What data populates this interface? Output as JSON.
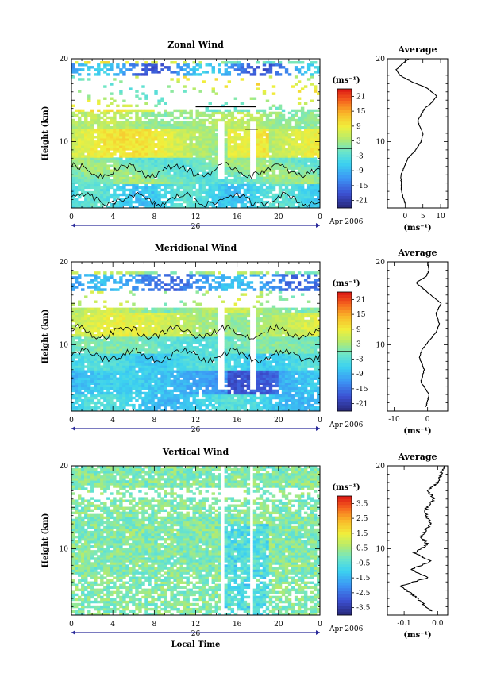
{
  "chart_data": [
    {
      "type": "heatmap",
      "title": "Zonal Wind",
      "ylabel": "Height (km)",
      "y_ticks": [
        "10",
        "20"
      ],
      "ylim": [
        2,
        20
      ],
      "x_ticks": [
        "0",
        "4",
        "8",
        "12",
        "16",
        "20",
        "0"
      ],
      "xlim": [
        0,
        24
      ],
      "date_label": "26",
      "date_suffix": "Apr 2006",
      "colorbar_unit": "(ms⁻¹)",
      "colorbar_ticks": [
        "21",
        "15",
        "9",
        "3",
        "-3",
        "-9",
        "-15",
        "-21"
      ],
      "colorbar_range": [
        -24,
        24
      ],
      "contour_level": 0,
      "profile": {
        "title": "Average",
        "y_ticks": [
          "10",
          "20"
        ],
        "x_ticks": [
          "0",
          "5",
          "10"
        ],
        "xlim": [
          -5,
          12
        ],
        "xlabel": "(ms⁻¹)",
        "points": [
          [
            0,
            2.5
          ],
          [
            -1,
            4
          ],
          [
            -1.2,
            6
          ],
          [
            0.8,
            8
          ],
          [
            3,
            9
          ],
          [
            4.5,
            10
          ],
          [
            5,
            11
          ],
          [
            3.5,
            12.5
          ],
          [
            5.5,
            14
          ],
          [
            7,
            14.5
          ],
          [
            9,
            15.5
          ],
          [
            6,
            16.5
          ],
          [
            2,
            17.2
          ],
          [
            -1.5,
            18
          ],
          [
            -2.5,
            18.7
          ],
          [
            -0.5,
            19.5
          ],
          [
            1,
            20
          ]
        ]
      }
    },
    {
      "type": "heatmap",
      "title": "Meridional Wind",
      "ylabel": "Height (km)",
      "y_ticks": [
        "10",
        "20"
      ],
      "ylim": [
        2,
        20
      ],
      "x_ticks": [
        "0",
        "4",
        "8",
        "12",
        "16",
        "20",
        "0"
      ],
      "xlim": [
        0,
        24
      ],
      "date_label": "26",
      "date_suffix": "Apr 2006",
      "colorbar_unit": "(ms⁻¹)",
      "colorbar_ticks": [
        "21",
        "15",
        "9",
        "3",
        "-3",
        "-9",
        "-15",
        "-21"
      ],
      "colorbar_range": [
        -24,
        24
      ],
      "contour_level": 0,
      "profile": {
        "title": "Average",
        "y_ticks": [
          "10",
          "20"
        ],
        "x_ticks": [
          "-10",
          "0"
        ],
        "xlim": [
          -12,
          6
        ],
        "xlabel": "(ms⁻¹)",
        "points": [
          [
            -0.5,
            2.5
          ],
          [
            0.5,
            4
          ],
          [
            -2,
            5.5
          ],
          [
            -1,
            7
          ],
          [
            -2.5,
            8.5
          ],
          [
            -1.5,
            9.5
          ],
          [
            0.5,
            10.5
          ],
          [
            2.5,
            11.5
          ],
          [
            3.5,
            12.5
          ],
          [
            2.5,
            13.8
          ],
          [
            4,
            15
          ],
          [
            1,
            16
          ],
          [
            -2,
            17
          ],
          [
            -3.5,
            17.5
          ],
          [
            -0.5,
            18.2
          ],
          [
            0.5,
            19
          ],
          [
            0,
            20
          ]
        ]
      }
    },
    {
      "type": "heatmap",
      "title": "Vertical Wind",
      "ylabel": "Height (km)",
      "xlabel": "Local Time",
      "y_ticks": [
        "10",
        "20"
      ],
      "ylim": [
        2,
        20
      ],
      "x_ticks": [
        "0",
        "4",
        "8",
        "12",
        "16",
        "20",
        "0"
      ],
      "xlim": [
        0,
        24
      ],
      "date_label": "26",
      "date_suffix": "Apr 2006",
      "colorbar_unit": "(ms⁻¹)",
      "colorbar_ticks": [
        "3.5",
        "2.5",
        "1.5",
        "0.5",
        "-0.5",
        "-1.5",
        "-2.5",
        "-3.5"
      ],
      "colorbar_range": [
        -4,
        4
      ],
      "profile": {
        "title": "Average",
        "y_ticks": [
          "10",
          "20"
        ],
        "x_ticks": [
          "-0.1",
          "0.0"
        ],
        "xlim": [
          -0.15,
          0.03
        ],
        "xlabel": "(ms⁻¹)",
        "points": [
          [
            -0.02,
            2.5
          ],
          [
            -0.06,
            4
          ],
          [
            -0.11,
            5.5
          ],
          [
            -0.03,
            6.5
          ],
          [
            -0.08,
            7.5
          ],
          [
            -0.02,
            8.5
          ],
          [
            -0.07,
            9.5
          ],
          [
            -0.03,
            10.5
          ],
          [
            -0.05,
            11.5
          ],
          [
            -0.02,
            13
          ],
          [
            -0.04,
            14.5
          ],
          [
            -0.01,
            16
          ],
          [
            -0.03,
            17
          ],
          [
            0.0,
            18
          ],
          [
            0.01,
            19
          ],
          [
            0.02,
            20
          ]
        ]
      }
    }
  ]
}
